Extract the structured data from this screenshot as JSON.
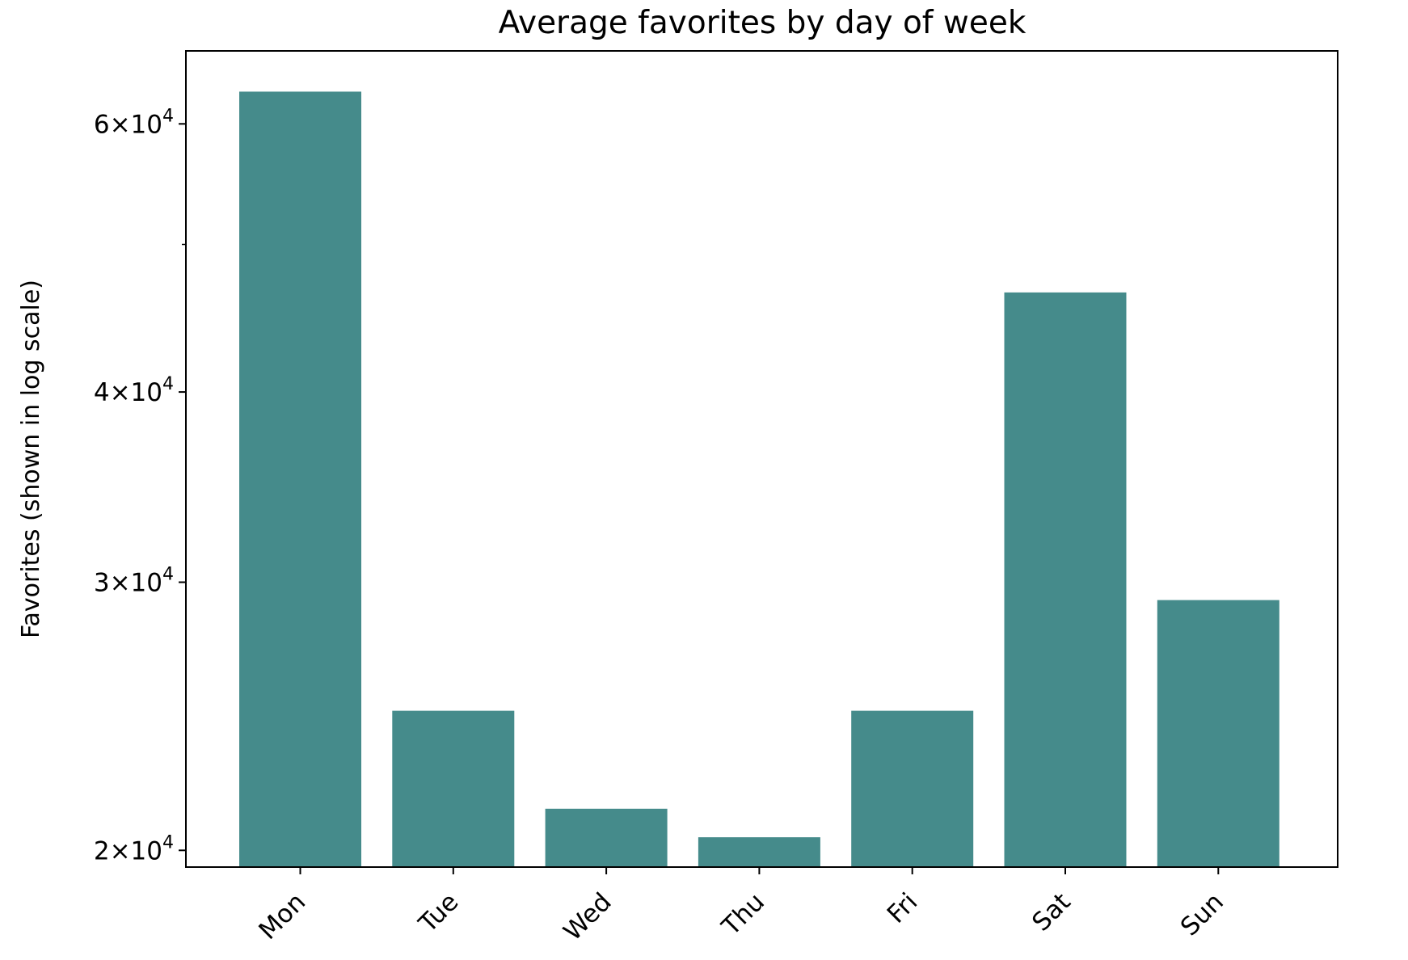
{
  "chart_data": {
    "type": "bar",
    "title": "Average favorites by day of week",
    "xlabel": "",
    "ylabel": "Favorites (shown in log scale)",
    "yscale": "log",
    "ylim": [
      19500,
      67000
    ],
    "categories": [
      "Mon",
      "Tue",
      "Wed",
      "Thu",
      "Fri",
      "Sat",
      "Sun"
    ],
    "values": [
      63000,
      24700,
      21300,
      20400,
      24700,
      46500,
      29200
    ],
    "y_ticks": [
      {
        "value": 20000,
        "mantissa": "2",
        "times": "×",
        "base": "10",
        "exponent": "4"
      },
      {
        "value": 30000,
        "mantissa": "3",
        "times": "×",
        "base": "10",
        "exponent": "4"
      },
      {
        "value": 40000,
        "mantissa": "4",
        "times": "×",
        "base": "10",
        "exponent": "4"
      },
      {
        "value": 60000,
        "mantissa": "6",
        "times": "×",
        "base": "10",
        "exponent": "4"
      }
    ],
    "y_minor_ticks": [
      50000
    ],
    "x_tick_rotation": 45,
    "grid": false,
    "legend": "none",
    "colors": {
      "bar": "#458b8b",
      "axes": "#000000",
      "background": "#ffffff"
    }
  }
}
